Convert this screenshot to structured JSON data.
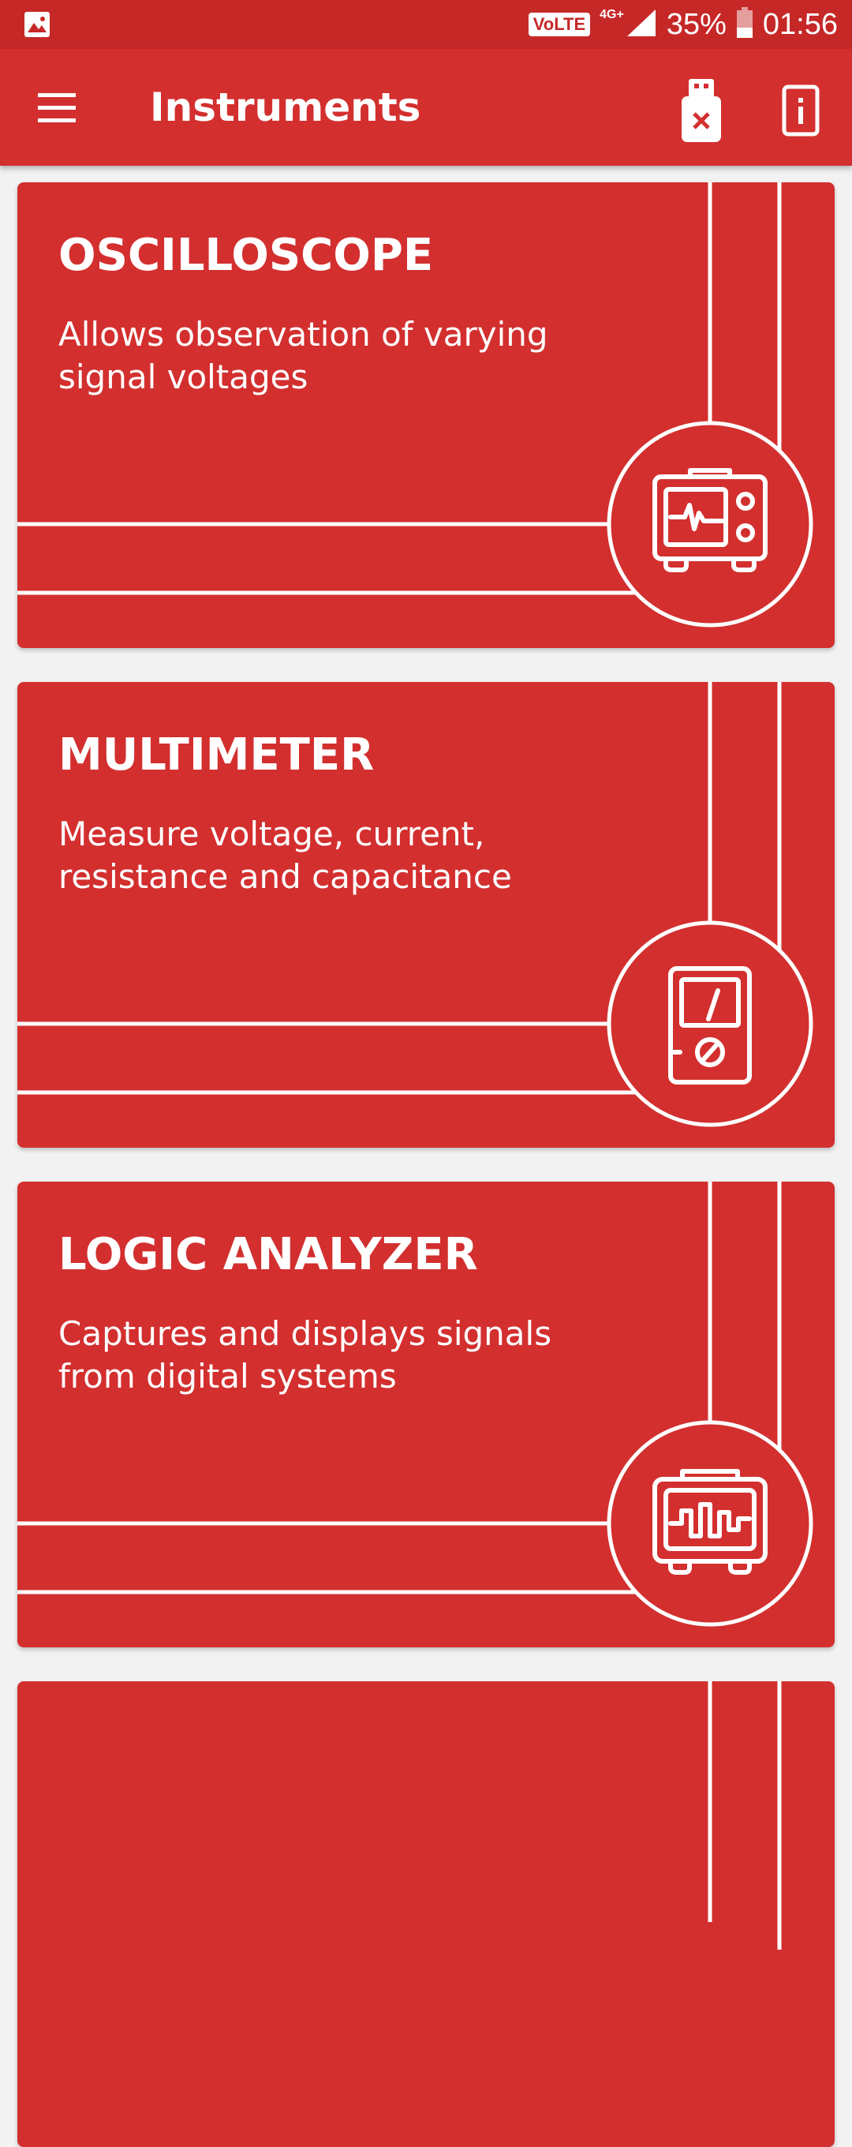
{
  "status_bar": {
    "volte": "VoLTE",
    "network": "4G+",
    "battery": "35%",
    "time": "01:56"
  },
  "app_bar": {
    "title": "Instruments"
  },
  "instruments": [
    {
      "title": "OSCILLOSCOPE",
      "description": "Allows observation of varying signal voltages",
      "icon": "oscilloscope-icon"
    },
    {
      "title": "MULTIMETER",
      "description": "Measure voltage, current, resistance and capacitance",
      "icon": "multimeter-icon"
    },
    {
      "title": "LOGIC ANALYZER",
      "description": "Captures and displays signals from digital systems",
      "icon": "logic-analyzer-icon"
    }
  ],
  "colors": {
    "primary": "#D32F2F",
    "primary_dark": "#C62828",
    "background": "#F2F2F2",
    "on_primary": "#FFFFFF"
  }
}
